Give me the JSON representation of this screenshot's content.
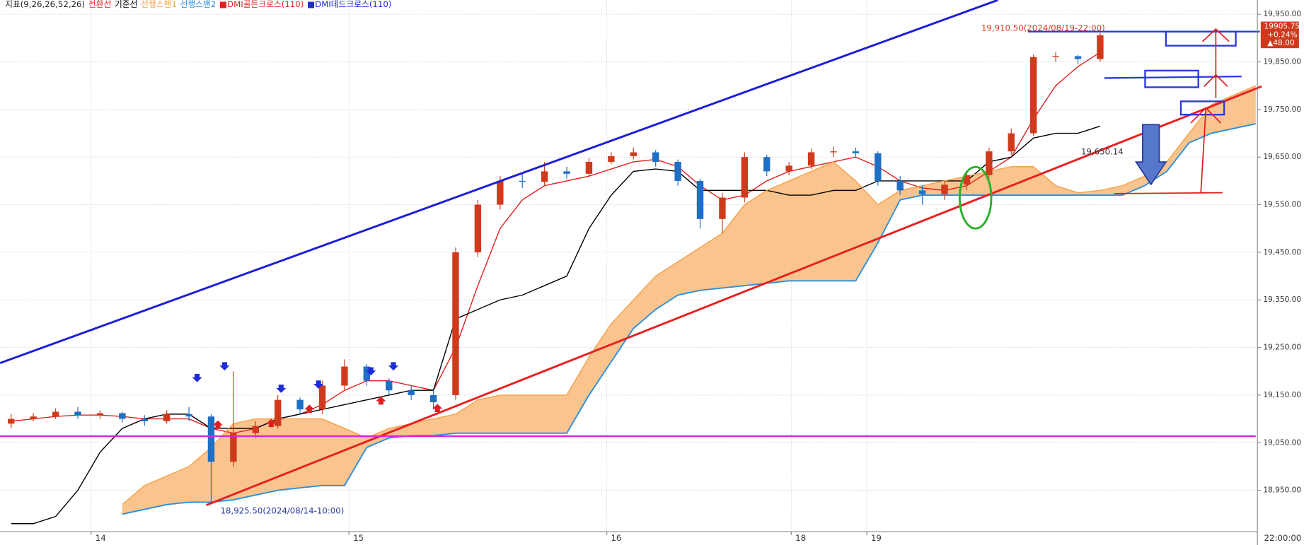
{
  "chart_data": {
    "type": "candlestick",
    "indicator_label": "지표(9,26,26,52,26)",
    "up_color": "#d03a1c",
    "down_color": "#1f6fc4",
    "open": [
      19090,
      19100,
      19105,
      19115,
      19108,
      19112,
      19100,
      19095,
      19110,
      19105,
      19010,
      19070,
      19085,
      19140,
      19120,
      19170,
      19210,
      19180,
      19160,
      19150,
      19150,
      19450,
      19550,
      19600,
      19598,
      19620,
      19615,
      19640,
      19652,
      19660,
      19640,
      19600,
      19520,
      19565,
      19650,
      19620,
      19632,
      19660,
      19662,
      19658,
      19600,
      19580,
      19572,
      19592,
      19612,
      19662,
      19700,
      19860,
      19862,
      19856
    ],
    "high": [
      19110,
      19112,
      19122,
      19125,
      19118,
      19115,
      19108,
      19118,
      19125,
      19110,
      19200,
      19095,
      19150,
      19145,
      19180,
      19225,
      19215,
      19185,
      19170,
      19160,
      19460,
      19560,
      19610,
      19615,
      19640,
      19630,
      19648,
      19660,
      19670,
      19665,
      19645,
      19605,
      19575,
      19660,
      19655,
      19640,
      19668,
      19672,
      19670,
      19662,
      19610,
      19590,
      19600,
      19620,
      19670,
      19710,
      19865,
      19870,
      19865,
      19910.5
    ],
    "low": [
      19080,
      19095,
      19100,
      19100,
      19100,
      19092,
      19085,
      19090,
      19095,
      18925.5,
      19000,
      19060,
      19080,
      19110,
      19110,
      19160,
      19170,
      19150,
      19140,
      19120,
      19140,
      19440,
      19540,
      19585,
      19590,
      19605,
      19610,
      19635,
      19645,
      19630,
      19590,
      19500,
      19490,
      19555,
      19610,
      19612,
      19625,
      19650,
      19650,
      19590,
      19570,
      19550,
      19560,
      19580,
      19605,
      19655,
      19695,
      19850,
      19845,
      19850
    ],
    "close": [
      19100,
      19105,
      19115,
      19108,
      19112,
      19100,
      19095,
      19110,
      19105,
      19010,
      19070,
      19085,
      19140,
      19120,
      19170,
      19210,
      19180,
      19160,
      19150,
      19135,
      19450,
      19550,
      19600,
      19598,
      19620,
      19615,
      19640,
      19652,
      19660,
      19640,
      19600,
      19520,
      19565,
      19650,
      19620,
      19632,
      19660,
      19662,
      19658,
      19600,
      19580,
      19572,
      19592,
      19612,
      19662,
      19700,
      19860,
      19862,
      19856,
      19905.75
    ],
    "lines": [
      {
        "name": "전환선",
        "color": "#e02020",
        "values": [
          19095,
          19100,
          19105,
          19108,
          19108,
          19105,
          19100,
          19100,
          19100,
          19080,
          19070,
          19080,
          19100,
          19110,
          19130,
          19160,
          19180,
          19180,
          19170,
          19160,
          19250,
          19380,
          19500,
          19560,
          19590,
          19600,
          19610,
          19625,
          19640,
          19645,
          19630,
          19590,
          19560,
          19570,
          19600,
          19620,
          19630,
          19640,
          19650,
          19630,
          19600,
          19585,
          19580,
          19590,
          19620,
          19650,
          19730,
          19800,
          19840,
          19870,
          null,
          null,
          null,
          null,
          null,
          null,
          null
        ]
      },
      {
        "name": "기준선",
        "color": "#000000",
        "values": [
          18880,
          18880,
          18895,
          18950,
          19030,
          19080,
          19100,
          19110,
          19110,
          19080,
          19080,
          19080,
          19100,
          19110,
          19120,
          19130,
          19140,
          19150,
          19160,
          19160,
          19310,
          19330,
          19350,
          19360,
          19380,
          19400,
          19500,
          19570,
          19620,
          19625,
          19620,
          19580,
          19580,
          19580,
          19580,
          19570,
          19570,
          19580,
          19580,
          19600,
          19600,
          19600,
          19600,
          19600,
          19640,
          19650,
          19690,
          19700,
          19700,
          19715,
          null,
          null,
          null,
          null,
          null,
          null,
          null
        ]
      },
      {
        "name": "선행스팬1",
        "color": "#f5a24a",
        "values": [
          null,
          null,
          null,
          null,
          null,
          18920,
          18960,
          18980,
          19000,
          19040,
          19090,
          19100,
          19100,
          19100,
          19100,
          19080,
          19060,
          19080,
          19090,
          19100,
          19110,
          19140,
          19150,
          19150,
          19150,
          19150,
          19230,
          19300,
          19350,
          19400,
          19430,
          19460,
          19490,
          19550,
          19580,
          19600,
          19620,
          19640,
          19600,
          19550,
          19580,
          19590,
          19600,
          19610,
          19620,
          19630,
          19630,
          19590,
          19575,
          19580,
          19590,
          19610,
          19640,
          19700,
          19760,
          19780,
          19800
        ]
      },
      {
        "name": "선행스팬2",
        "color": "#2a8fdc",
        "values": [
          null,
          null,
          null,
          null,
          null,
          18900,
          18910,
          18920,
          18925,
          18925,
          18930,
          18940,
          18950,
          18955,
          18960,
          18960,
          19040,
          19060,
          19065,
          19065,
          19070,
          19070,
          19070,
          19070,
          19070,
          19070,
          19150,
          19220,
          19290,
          19330,
          19360,
          19370,
          19375,
          19380,
          19385,
          19390,
          19390,
          19390,
          19390,
          19470,
          19560,
          19570,
          19570,
          19570,
          19570,
          19570,
          19570,
          19570,
          19570,
          19570,
          19570,
          19590,
          19620,
          19680,
          19700,
          19710,
          19720
        ]
      }
    ],
    "cloud_color": "#f9c48e",
    "signals": [
      {
        "name": "■DMI골든크로스(110)",
        "color": "#e02020"
      },
      {
        "name": "■DMI데드크로스(110)",
        "color": "#1d2bd8"
      }
    ],
    "xlim": [
      -0.5,
      56
    ],
    "xticks": [
      {
        "value": 3.6,
        "label": "14"
      },
      {
        "value": 15.2,
        "label": "15"
      },
      {
        "value": 26.8,
        "label": "16"
      },
      {
        "value": 35.1,
        "label": "18"
      },
      {
        "value": 38.5,
        "label": "19"
      }
    ],
    "ylim": [
      18863,
      19980
    ],
    "yticks": [
      {
        "value": 18950,
        "label": "18,950.00"
      },
      {
        "value": 19050,
        "label": "19,050.00"
      },
      {
        "value": 19150,
        "label": "19,150.00"
      },
      {
        "value": 19250,
        "label": "19,250.00"
      },
      {
        "value": 19350,
        "label": "19,350.00"
      },
      {
        "value": 19450,
        "label": "19,450.00"
      },
      {
        "value": 19550,
        "label": "19,550.00"
      },
      {
        "value": 19650,
        "label": "19,650.00"
      },
      {
        "value": 19750,
        "label": "19,750.00"
      },
      {
        "value": 19850,
        "label": "19,850.00"
      },
      {
        "value": 19950,
        "label": "19,950.00"
      }
    ],
    "grid": true,
    "annotations": {
      "high_label": "19,910.50(2024/08/19-22:00)",
      "low_label": "18,925.50(2024/08/14-10:00)",
      "level_label": "19,650.14",
      "price_tag": "19905.75",
      "change_pct": "+0.24%",
      "change_abs": "▲48.00",
      "time_label": "22:00:00"
    }
  }
}
